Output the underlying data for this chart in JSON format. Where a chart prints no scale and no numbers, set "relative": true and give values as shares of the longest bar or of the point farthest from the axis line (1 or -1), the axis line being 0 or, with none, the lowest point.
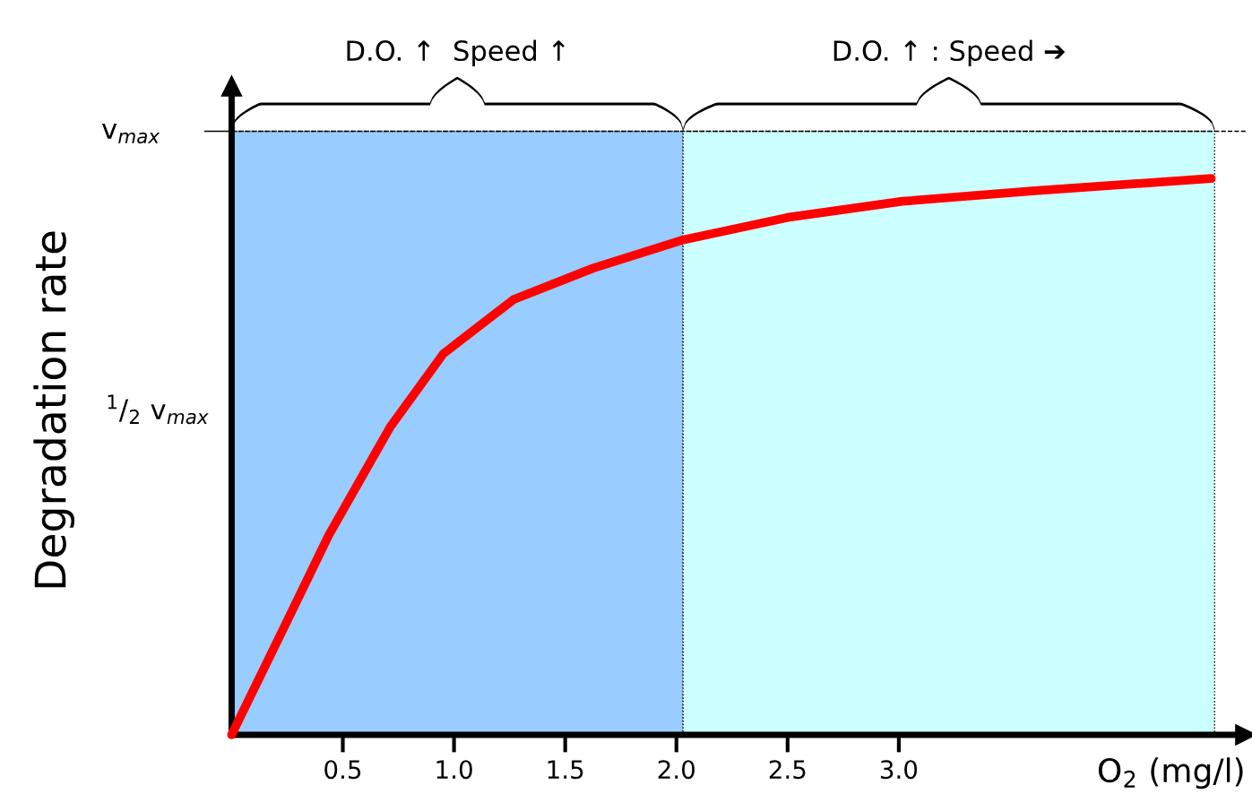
{
  "chart_data": {
    "type": "line",
    "xlabel": "O$_{2}$ (mg/l)",
    "ylabel": "Degradation rate",
    "relative": true,
    "x": [
      0,
      0.238,
      0.437,
      0.714,
      0.952,
      1.27,
      1.627,
      2.024,
      2.5,
      3.016,
      3.611,
      4.405
    ],
    "series": [
      {
        "color": "#ff0000",
        "values": [
          0,
          0.195,
          0.359,
          0.554,
          0.685,
          0.783,
          0.839,
          0.889,
          0.93,
          0.959,
          0.978,
          1
        ]
      }
    ],
    "xlim": [
      0,
      4.56
    ],
    "xticks": [
      0.5,
      {
        "value": 1,
        "label": "1.0"
      },
      1.5,
      {
        "value": 2,
        "label": "2.0"
      },
      2.5,
      {
        "value": 3,
        "label": "3.0"
      }
    ],
    "ref_lines": [
      {
        "axis": "y",
        "value": 1.085,
        "label": "v$_{max}$",
        "color": "#000000",
        "line_style": "dashed"
      }
    ],
    "annotations": [
      "$^{1}$/$_{2}$ v$_{max}$"
    ],
    "bands": [
      {
        "axis": "x",
        "from": 0,
        "to": 2.03,
        "label": "D.O. ↑  Speed ↑",
        "color": "#99ccff"
      },
      {
        "axis": "x",
        "from": 2.03,
        "to": 4.42,
        "label": "D.O. ↑ : Speed ➔",
        "color": "#ccffff"
      }
    ],
    "grid": false,
    "marker": "none",
    "line_style": "solid"
  }
}
